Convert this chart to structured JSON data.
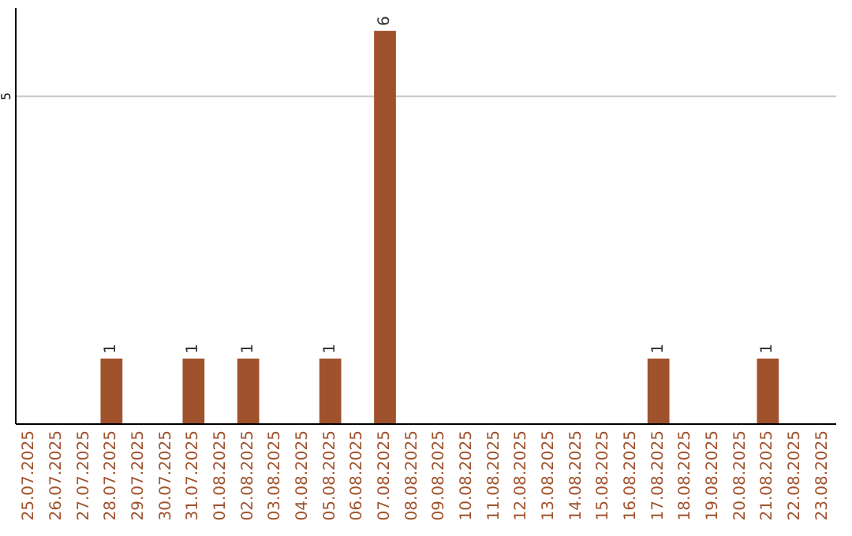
{
  "chart_data": {
    "type": "bar",
    "categories": [
      "25.07.2025",
      "26.07.2025",
      "27.07.2025",
      "28.07.2025",
      "29.07.2025",
      "30.07.2025",
      "31.07.2025",
      "01.08.2025",
      "02.08.2025",
      "03.08.2025",
      "04.08.2025",
      "05.08.2025",
      "06.08.2025",
      "07.08.2025",
      "08.08.2025",
      "09.08.2025",
      "10.08.2025",
      "11.08.2025",
      "12.08.2025",
      "13.08.2025",
      "14.08.2025",
      "15.08.2025",
      "16.08.2025",
      "17.08.2025",
      "18.08.2025",
      "19.08.2025",
      "20.08.2025",
      "21.08.2025",
      "22.08.2025",
      "23.08.2025"
    ],
    "values": [
      0,
      0,
      0,
      1,
      0,
      0,
      1,
      0,
      1,
      0,
      0,
      1,
      0,
      6,
      0,
      0,
      0,
      0,
      0,
      0,
      0,
      0,
      0,
      1,
      0,
      0,
      0,
      1,
      0,
      0
    ],
    "value_labels": [
      null,
      null,
      null,
      "1",
      null,
      null,
      "1",
      null,
      "1",
      null,
      null,
      "1",
      null,
      "6",
      null,
      null,
      null,
      null,
      null,
      null,
      null,
      null,
      null,
      "1",
      null,
      null,
      null,
      "1",
      null,
      null
    ],
    "color": "#a0522d",
    "ylim": [
      0,
      6.35
    ],
    "yticks": [
      5
    ],
    "grid": "y"
  }
}
